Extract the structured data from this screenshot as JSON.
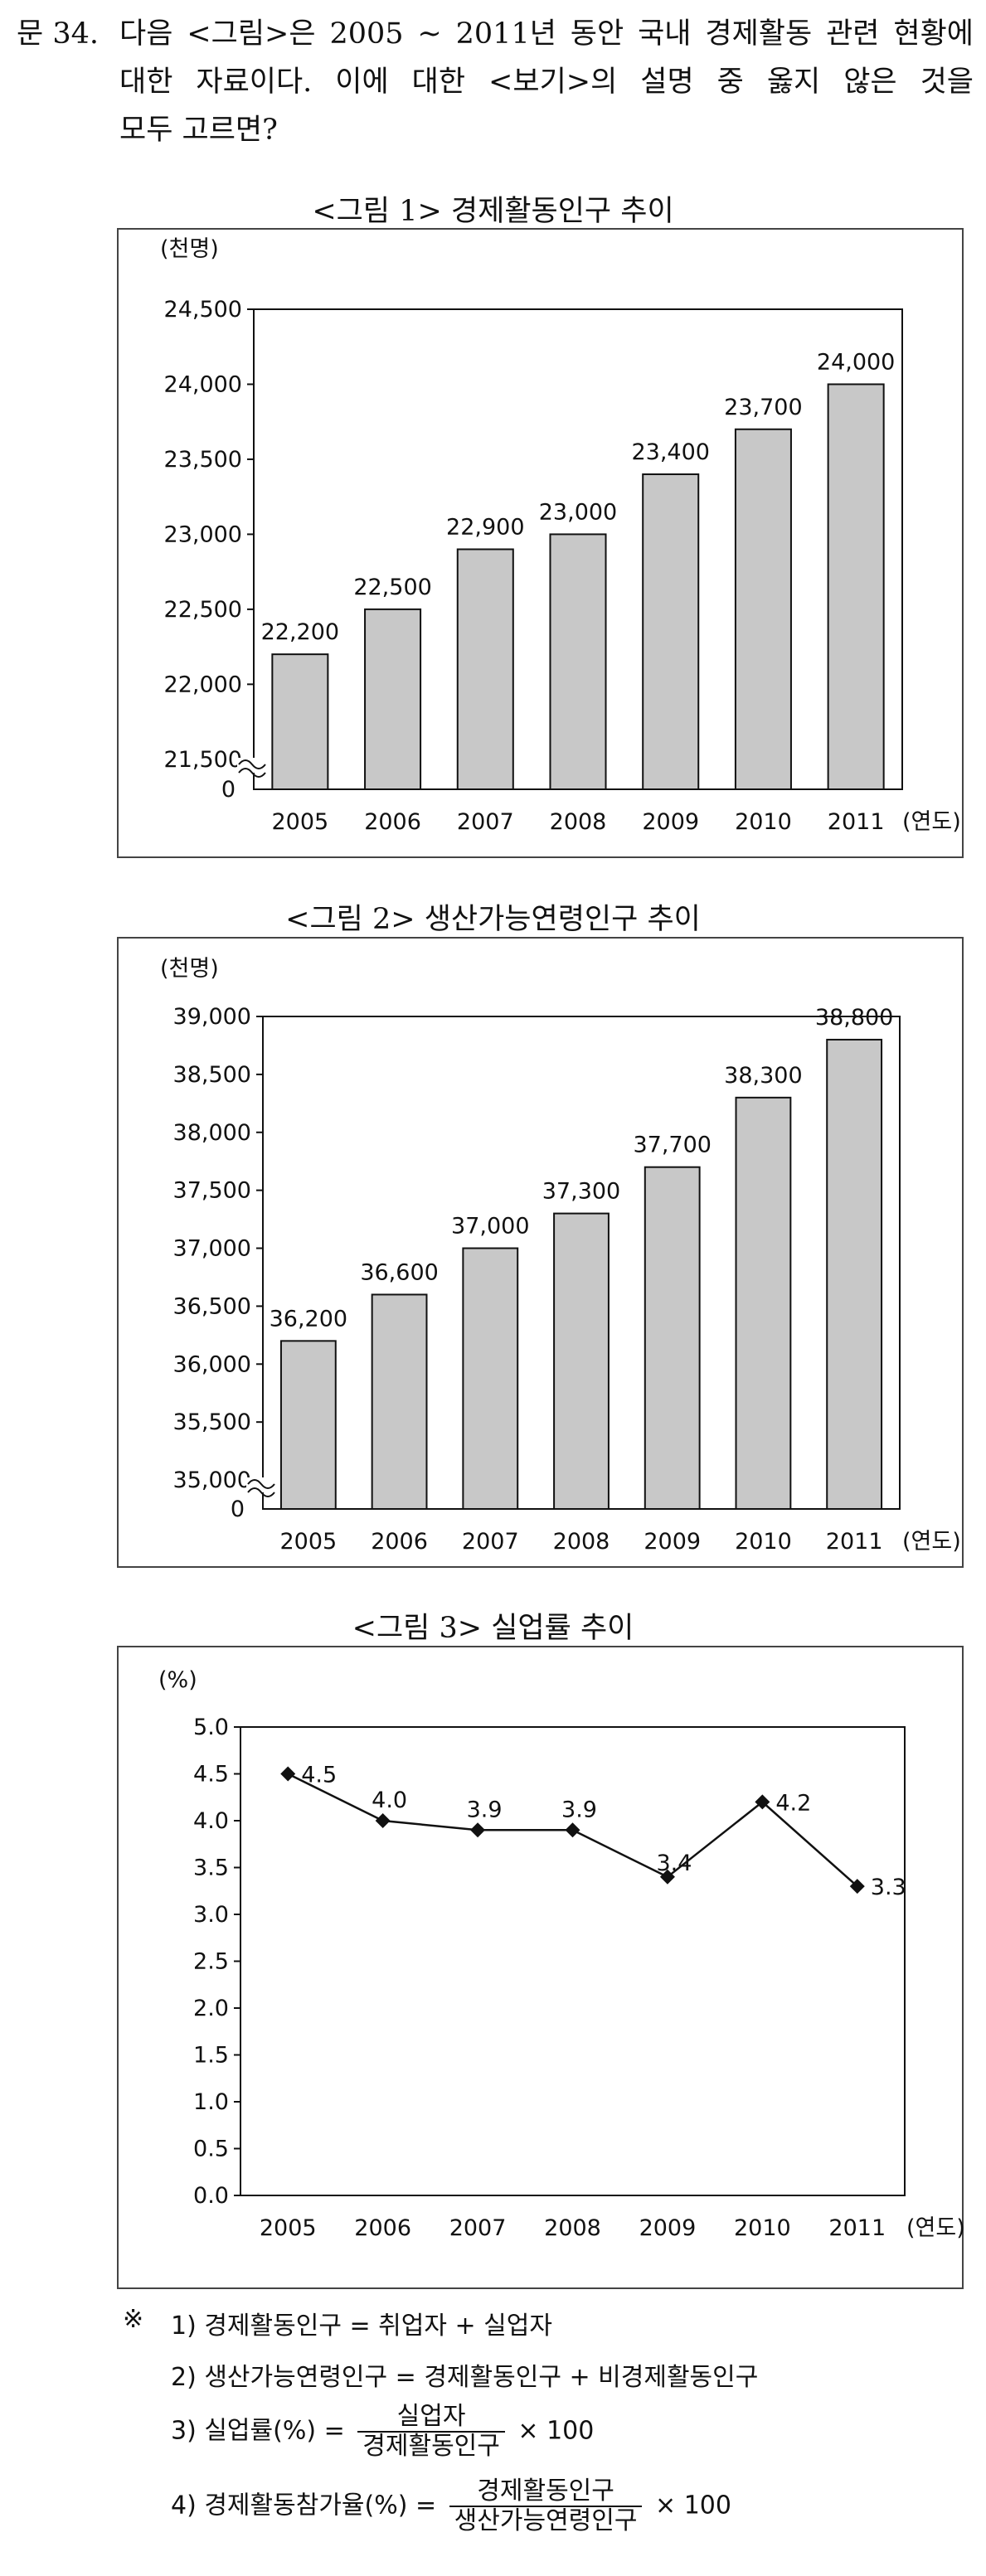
{
  "question": {
    "number": "문 34.",
    "line1": "다음 <그림>은 2005 ~ 2011년 동안 국내 경제활동 관련 현황에",
    "line2": "대한 자료이다. 이에 대한 <보기>의 설명 중 옳지 않은 것을",
    "line3": "모두 고르면?"
  },
  "figures": [
    {
      "title": "<그림 1> 경제활동인구 추이"
    },
    {
      "title": "<그림 2> 생산가능연령인구 추이"
    },
    {
      "title": "<그림 3> 실업률 추이"
    }
  ],
  "chart_data": [
    {
      "type": "bar",
      "title": "<그림 1> 경제활동인구 추이",
      "ylabel": "(천명)",
      "xlabel": "(연도)",
      "categories": [
        "2005",
        "2006",
        "2007",
        "2008",
        "2009",
        "2010",
        "2011"
      ],
      "values": [
        22200,
        22500,
        22900,
        23000,
        23400,
        23700,
        24000
      ],
      "data_labels": [
        "22,200",
        "22,500",
        "22,900",
        "23,000",
        "23,400",
        "23,700",
        "24,000"
      ],
      "yticks": [
        21500,
        22000,
        22500,
        23000,
        23500,
        24000,
        24500
      ],
      "ytick_labels": [
        "21,500",
        "22,000",
        "22,500",
        "23,000",
        "23,500",
        "24,000",
        "24,500"
      ],
      "ylim": [
        21300,
        24500
      ],
      "axis_break": true,
      "zero_label": "0",
      "bar_color": "#c8c8c8"
    },
    {
      "type": "bar",
      "title": "<그림 2> 생산가능연령인구 추이",
      "ylabel": "(천명)",
      "xlabel": "(연도)",
      "categories": [
        "2005",
        "2006",
        "2007",
        "2008",
        "2009",
        "2010",
        "2011"
      ],
      "values": [
        36200,
        36600,
        37000,
        37300,
        37700,
        38300,
        38800
      ],
      "data_labels": [
        "36,200",
        "36,600",
        "37,000",
        "37,300",
        "37,700",
        "38,300",
        "38,800"
      ],
      "yticks": [
        35000,
        35500,
        36000,
        36500,
        37000,
        37500,
        38000,
        38500,
        39000
      ],
      "ytick_labels": [
        "35,000",
        "35,500",
        "36,000",
        "36,500",
        "37,000",
        "37,500",
        "38,000",
        "38,500",
        "39,000"
      ],
      "ylim": [
        34750,
        39000
      ],
      "axis_break": true,
      "zero_label": "0",
      "bar_color": "#c8c8c8"
    },
    {
      "type": "line",
      "title": "<그림 3> 실업률 추이",
      "ylabel": "(%)",
      "xlabel": "(연도)",
      "categories": [
        "2005",
        "2006",
        "2007",
        "2008",
        "2009",
        "2010",
        "2011"
      ],
      "values": [
        4.5,
        4.0,
        3.9,
        3.9,
        3.4,
        4.2,
        3.3
      ],
      "data_labels": [
        "4.5",
        "4.0",
        "3.9",
        "3.9",
        "3.4",
        "4.2",
        "3.3"
      ],
      "yticks": [
        0.0,
        0.5,
        1.0,
        1.5,
        2.0,
        2.5,
        3.0,
        3.5,
        4.0,
        4.5,
        5.0
      ],
      "ytick_labels": [
        "0.0",
        "0.5",
        "1.0",
        "1.5",
        "2.0",
        "2.5",
        "3.0",
        "3.5",
        "4.0",
        "4.5",
        "5.0"
      ],
      "ylim": [
        0,
        5.0
      ],
      "marker": "diamond",
      "line_color": "#111111"
    }
  ],
  "notes": {
    "mark": "※",
    "n1": "1) 경제활동인구 = 취업자 + 실업자",
    "n2": "2) 생산가능연령인구 = 경제활동인구 + 비경제활동인구",
    "n3_lhs": "3) 실업률(%) =",
    "n3_num": "실업자",
    "n3_den": "경제활동인구",
    "n3_tail": "× 100",
    "n4_lhs": "4) 경제활동참가율(%) =",
    "n4_num": "경제활동인구",
    "n4_den": "생산가능연령인구",
    "n4_tail": "× 100"
  }
}
